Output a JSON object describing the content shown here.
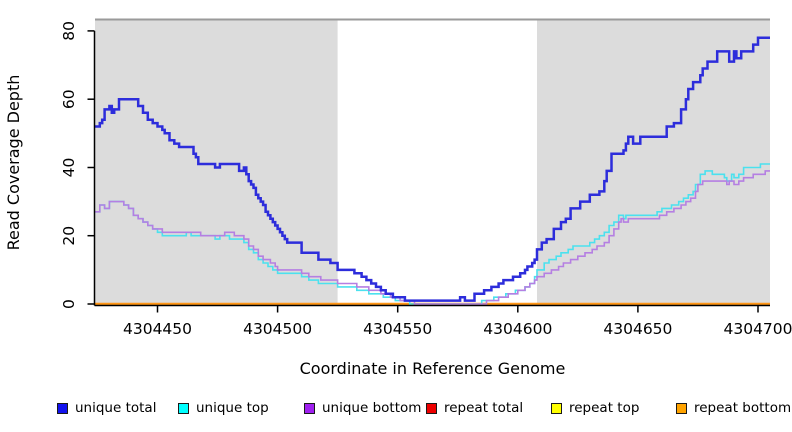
{
  "chart_data": {
    "type": "line",
    "step": true,
    "title": "",
    "xlabel": "Coordinate in Reference Genome",
    "ylabel": "Read Coverage Depth",
    "xlim": [
      4304424,
      4304705
    ],
    "ylim": [
      0,
      83.2
    ],
    "xticks": [
      4304450,
      4304500,
      4304550,
      4304600,
      4304650,
      4304700
    ],
    "yticks": [
      0,
      20,
      40,
      60,
      80
    ],
    "grid": false,
    "background_color": "#ffffff",
    "shaded_color": "#dcdcdc",
    "top_border_color": "#9a9a9a",
    "axis_color": "#000000",
    "shaded_regions": [
      [
        4304424,
        4304525
      ],
      [
        4304608,
        4304705
      ]
    ],
    "series": [
      {
        "name": "repeat total",
        "color": "#e02020",
        "width": 2,
        "points": [
          [
            4304424,
            0
          ],
          [
            4304705,
            0
          ]
        ]
      },
      {
        "name": "repeat top",
        "color": "#ffee00",
        "width": 2,
        "points": [
          [
            4304424,
            0
          ],
          [
            4304705,
            0
          ]
        ]
      },
      {
        "name": "repeat bottom",
        "color": "#ff9516",
        "width": 2.4,
        "points": [
          [
            4304424,
            0
          ],
          [
            4304705,
            0
          ]
        ]
      },
      {
        "name": "unique top",
        "color": "#4be1ee",
        "width": 1.6,
        "points": [
          [
            4304424,
            27
          ],
          [
            4304426,
            29
          ],
          [
            4304428,
            28
          ],
          [
            4304430,
            30
          ],
          [
            4304436,
            29
          ],
          [
            4304438,
            28
          ],
          [
            4304440,
            26
          ],
          [
            4304442,
            25
          ],
          [
            4304444,
            24
          ],
          [
            4304446,
            23
          ],
          [
            4304448,
            22
          ],
          [
            4304450,
            21
          ],
          [
            4304452,
            20
          ],
          [
            4304462,
            21
          ],
          [
            4304464,
            20
          ],
          [
            4304474,
            19
          ],
          [
            4304476,
            20
          ],
          [
            4304480,
            19
          ],
          [
            4304486,
            18
          ],
          [
            4304488,
            16
          ],
          [
            4304490,
            15
          ],
          [
            4304492,
            13
          ],
          [
            4304494,
            12
          ],
          [
            4304496,
            11
          ],
          [
            4304498,
            10
          ],
          [
            4304500,
            9
          ],
          [
            4304510,
            8
          ],
          [
            4304513,
            7
          ],
          [
            4304517,
            6
          ],
          [
            4304525,
            5
          ],
          [
            4304533,
            4
          ],
          [
            4304538,
            3
          ],
          [
            4304544,
            2
          ],
          [
            4304549,
            1
          ],
          [
            4304555,
            0
          ],
          [
            4304581,
            0
          ],
          [
            4304585,
            1
          ],
          [
            4304590,
            2
          ],
          [
            4304595,
            3
          ],
          [
            4304599,
            4
          ],
          [
            4304603,
            5
          ],
          [
            4304605,
            6
          ],
          [
            4304607,
            8
          ],
          [
            4304608,
            10
          ],
          [
            4304611,
            12
          ],
          [
            4304613,
            13
          ],
          [
            4304616,
            14
          ],
          [
            4304618,
            15
          ],
          [
            4304621,
            16
          ],
          [
            4304623,
            17
          ],
          [
            4304630,
            18
          ],
          [
            4304632,
            19
          ],
          [
            4304634,
            20
          ],
          [
            4304636,
            21
          ],
          [
            4304638,
            23
          ],
          [
            4304640,
            24
          ],
          [
            4304642,
            26
          ],
          [
            4304644,
            25
          ],
          [
            4304645,
            26
          ],
          [
            4304656,
            26
          ],
          [
            4304658,
            27
          ],
          [
            4304660,
            28
          ],
          [
            4304664,
            29
          ],
          [
            4304667,
            30
          ],
          [
            4304669,
            31
          ],
          [
            4304671,
            32
          ],
          [
            4304673,
            33
          ],
          [
            4304674,
            35
          ],
          [
            4304676,
            38
          ],
          [
            4304678,
            39
          ],
          [
            4304681,
            38
          ],
          [
            4304686,
            37
          ],
          [
            4304687,
            36
          ],
          [
            4304689,
            38
          ],
          [
            4304690,
            37
          ],
          [
            4304692,
            38
          ],
          [
            4304694,
            40
          ],
          [
            4304701,
            41
          ],
          [
            4304705,
            41
          ]
        ]
      },
      {
        "name": "unique bottom",
        "color": "#b57fe2",
        "width": 1.6,
        "points": [
          [
            4304424,
            27
          ],
          [
            4304426,
            29
          ],
          [
            4304428,
            28
          ],
          [
            4304430,
            30
          ],
          [
            4304436,
            29
          ],
          [
            4304438,
            28
          ],
          [
            4304440,
            26
          ],
          [
            4304442,
            25
          ],
          [
            4304444,
            24
          ],
          [
            4304446,
            23
          ],
          [
            4304448,
            22
          ],
          [
            4304452,
            21
          ],
          [
            4304466,
            21
          ],
          [
            4304468,
            20
          ],
          [
            4304478,
            21
          ],
          [
            4304482,
            20
          ],
          [
            4304486,
            19
          ],
          [
            4304488,
            17
          ],
          [
            4304490,
            16
          ],
          [
            4304492,
            14
          ],
          [
            4304494,
            13
          ],
          [
            4304497,
            12
          ],
          [
            4304499,
            11
          ],
          [
            4304500,
            10
          ],
          [
            4304510,
            9
          ],
          [
            4304513,
            8
          ],
          [
            4304518,
            7
          ],
          [
            4304525,
            6
          ],
          [
            4304533,
            5
          ],
          [
            4304538,
            4
          ],
          [
            4304543,
            3
          ],
          [
            4304547,
            2
          ],
          [
            4304551,
            1
          ],
          [
            4304557,
            0
          ],
          [
            4304583,
            0
          ],
          [
            4304587,
            1
          ],
          [
            4304592,
            2
          ],
          [
            4304596,
            3
          ],
          [
            4304600,
            4
          ],
          [
            4304603,
            5
          ],
          [
            4304605,
            6
          ],
          [
            4304607,
            7
          ],
          [
            4304608,
            8
          ],
          [
            4304611,
            9
          ],
          [
            4304614,
            10
          ],
          [
            4304617,
            11
          ],
          [
            4304619,
            12
          ],
          [
            4304622,
            13
          ],
          [
            4304625,
            14
          ],
          [
            4304628,
            15
          ],
          [
            4304631,
            16
          ],
          [
            4304633,
            17
          ],
          [
            4304636,
            18
          ],
          [
            4304638,
            20
          ],
          [
            4304640,
            22
          ],
          [
            4304642,
            24
          ],
          [
            4304643,
            25
          ],
          [
            4304644,
            24
          ],
          [
            4304646,
            25
          ],
          [
            4304656,
            25
          ],
          [
            4304659,
            26
          ],
          [
            4304662,
            27
          ],
          [
            4304665,
            28
          ],
          [
            4304668,
            29
          ],
          [
            4304670,
            30
          ],
          [
            4304672,
            31
          ],
          [
            4304674,
            33
          ],
          [
            4304675,
            35
          ],
          [
            4304677,
            36
          ],
          [
            4304686,
            36
          ],
          [
            4304687,
            35
          ],
          [
            4304688,
            36
          ],
          [
            4304690,
            35
          ],
          [
            4304692,
            36
          ],
          [
            4304694,
            37
          ],
          [
            4304698,
            38
          ],
          [
            4304703,
            39
          ],
          [
            4304705,
            39
          ]
        ]
      },
      {
        "name": "unique total",
        "color": "#2d2ddb",
        "width": 2.5,
        "points": [
          [
            4304424,
            52
          ],
          [
            4304426,
            53
          ],
          [
            4304427,
            54
          ],
          [
            4304428,
            57
          ],
          [
            4304430,
            58
          ],
          [
            4304431,
            56
          ],
          [
            4304432,
            57
          ],
          [
            4304434,
            60
          ],
          [
            4304442,
            58
          ],
          [
            4304444,
            56
          ],
          [
            4304446,
            54
          ],
          [
            4304448,
            53
          ],
          [
            4304450,
            52
          ],
          [
            4304452,
            51
          ],
          [
            4304453,
            50
          ],
          [
            4304455,
            48
          ],
          [
            4304457,
            47
          ],
          [
            4304459,
            46
          ],
          [
            4304465,
            44
          ],
          [
            4304466,
            43
          ],
          [
            4304467,
            41
          ],
          [
            4304474,
            40
          ],
          [
            4304476,
            41
          ],
          [
            4304484,
            39
          ],
          [
            4304486,
            40
          ],
          [
            4304487,
            38
          ],
          [
            4304488,
            36
          ],
          [
            4304489,
            35
          ],
          [
            4304490,
            34
          ],
          [
            4304491,
            32
          ],
          [
            4304492,
            31
          ],
          [
            4304493,
            30
          ],
          [
            4304494,
            29
          ],
          [
            4304495,
            27
          ],
          [
            4304496,
            26
          ],
          [
            4304497,
            25
          ],
          [
            4304498,
            24
          ],
          [
            4304499,
            23
          ],
          [
            4304500,
            22
          ],
          [
            4304501,
            21
          ],
          [
            4304502,
            20
          ],
          [
            4304503,
            19
          ],
          [
            4304504,
            18
          ],
          [
            4304510,
            15
          ],
          [
            4304517,
            13
          ],
          [
            4304522,
            12
          ],
          [
            4304525,
            10
          ],
          [
            4304532,
            9
          ],
          [
            4304535,
            8
          ],
          [
            4304537,
            7
          ],
          [
            4304539,
            6
          ],
          [
            4304541,
            5
          ],
          [
            4304543,
            4
          ],
          [
            4304545,
            3
          ],
          [
            4304548,
            2
          ],
          [
            4304553,
            1
          ],
          [
            4304575,
            1
          ],
          [
            4304576,
            2
          ],
          [
            4304578,
            1
          ],
          [
            4304582,
            3
          ],
          [
            4304586,
            4
          ],
          [
            4304589,
            5
          ],
          [
            4304592,
            6
          ],
          [
            4304594,
            7
          ],
          [
            4304598,
            8
          ],
          [
            4304601,
            9
          ],
          [
            4304603,
            10
          ],
          [
            4304604,
            11
          ],
          [
            4304606,
            12
          ],
          [
            4304607,
            13
          ],
          [
            4304608,
            16
          ],
          [
            4304610,
            18
          ],
          [
            4304612,
            19
          ],
          [
            4304615,
            22
          ],
          [
            4304618,
            24
          ],
          [
            4304620,
            25
          ],
          [
            4304622,
            28
          ],
          [
            4304626,
            30
          ],
          [
            4304630,
            32
          ],
          [
            4304634,
            33
          ],
          [
            4304636,
            36
          ],
          [
            4304637,
            39
          ],
          [
            4304639,
            44
          ],
          [
            4304644,
            45
          ],
          [
            4304645,
            47
          ],
          [
            4304646,
            49
          ],
          [
            4304648,
            47
          ],
          [
            4304651,
            49
          ],
          [
            4304662,
            52
          ],
          [
            4304665,
            53
          ],
          [
            4304668,
            57
          ],
          [
            4304670,
            60
          ],
          [
            4304671,
            63
          ],
          [
            4304673,
            65
          ],
          [
            4304676,
            67
          ],
          [
            4304677,
            69
          ],
          [
            4304679,
            71
          ],
          [
            4304683,
            74
          ],
          [
            4304688,
            71
          ],
          [
            4304690,
            74
          ],
          [
            4304691,
            72
          ],
          [
            4304693,
            74
          ],
          [
            4304698,
            76
          ],
          [
            4304700,
            78
          ],
          [
            4304705,
            78
          ]
        ]
      }
    ],
    "legend": {
      "position": "bottom",
      "entries": [
        {
          "label": "unique total",
          "color": "#1212ee"
        },
        {
          "label": "unique top",
          "color": "#00ffff"
        },
        {
          "label": "unique bottom",
          "color": "#a020f0"
        },
        {
          "label": "repeat total",
          "color": "#ee0000"
        },
        {
          "label": "repeat top",
          "color": "#ffff00"
        },
        {
          "label": "repeat bottom",
          "color": "#ffa300"
        }
      ]
    }
  }
}
